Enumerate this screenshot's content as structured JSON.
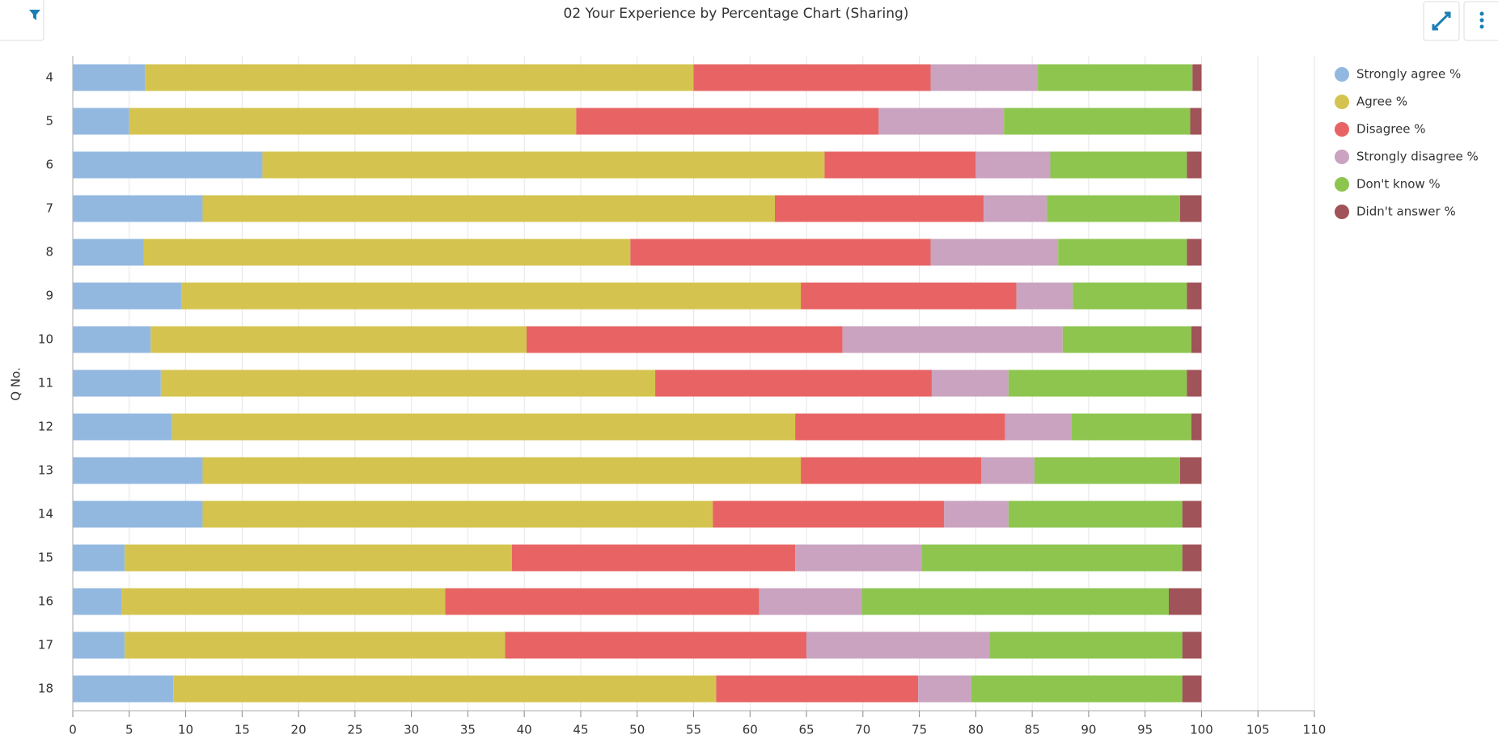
{
  "chart_data": {
    "type": "stacked-bar-horizontal",
    "title": "02 Your Experience by Percentage Chart (Sharing)",
    "y_label": "Q No.",
    "categories": [
      "4",
      "5",
      "6",
      "7",
      "8",
      "9",
      "10",
      "11",
      "12",
      "13",
      "14",
      "15",
      "16",
      "17",
      "18"
    ],
    "series": [
      {
        "name": "Strongly agree %",
        "color": "#93b8e0",
        "values": [
          6.4,
          5,
          16.8,
          11.5,
          6.3,
          9.6,
          6.9,
          7.8,
          8.8,
          11.5,
          11.5,
          4.6,
          4.3,
          4.6,
          8.9
        ]
      },
      {
        "name": "Agree %",
        "color": "#d4c44f",
        "values": [
          48.6,
          39.6,
          49.8,
          50.7,
          43.1,
          54.9,
          33.3,
          43.8,
          55.2,
          53,
          45.2,
          34.3,
          28.7,
          33.7,
          48.1
        ]
      },
      {
        "name": "Disagree %",
        "color": "#e86464",
        "values": [
          21,
          26.8,
          13.4,
          18.5,
          26.6,
          19.1,
          28,
          24.5,
          18.6,
          16,
          20.5,
          25.1,
          27.8,
          26.7,
          17.9
        ]
      },
      {
        "name": "Strongly disagree %",
        "color": "#c9a3c0",
        "values": [
          9.5,
          11.1,
          6.6,
          5.6,
          11.3,
          5,
          19.5,
          6.8,
          5.9,
          4.7,
          5.7,
          11.2,
          9.1,
          16.2,
          4.7
        ]
      },
      {
        "name": "Don't know %",
        "color": "#8dc54f",
        "values": [
          13.7,
          16.5,
          12.1,
          11.8,
          11.4,
          10.1,
          11.4,
          15.8,
          10.6,
          12.9,
          15.4,
          23.1,
          27.2,
          17.1,
          18.7
        ]
      },
      {
        "name": "Didn't answer %",
        "color": "#a05358",
        "values": [
          0.8,
          1,
          1.3,
          1.9,
          1.3,
          1.3,
          0.9,
          1.3,
          0.9,
          1.9,
          1.7,
          1.7,
          2.9,
          1.7,
          1.7
        ]
      }
    ],
    "xlim": [
      0,
      110
    ],
    "xticks": [
      0,
      5,
      10,
      15,
      20,
      25,
      30,
      35,
      40,
      45,
      50,
      55,
      60,
      65,
      70,
      75,
      80,
      85,
      90,
      95,
      100,
      105,
      110
    ],
    "grid": true,
    "legend": "right"
  }
}
